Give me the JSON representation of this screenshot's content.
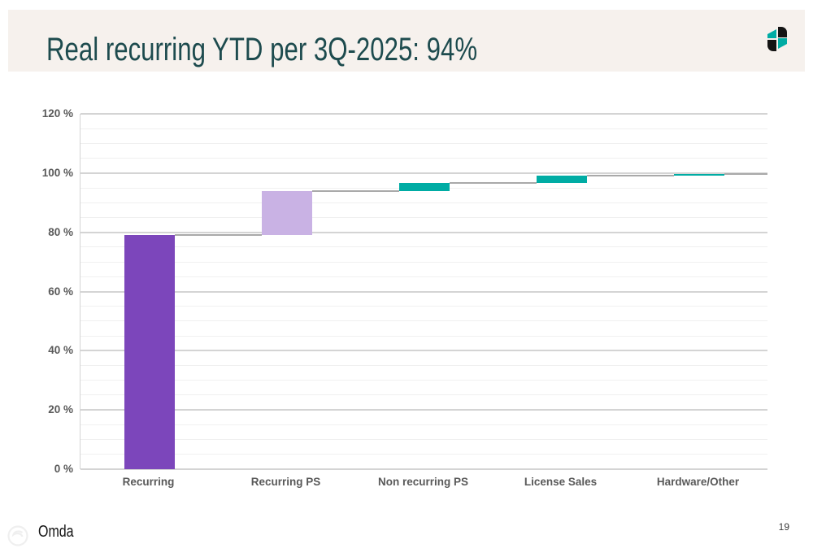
{
  "page": {
    "title": "Real recurring YTD per 3Q-2025: 94%",
    "footer_brand": "Omda",
    "page_number": "19"
  },
  "icons": {
    "header_logo": "omda-logo",
    "footer_logo": "omda-seal"
  },
  "colors": {
    "title": "#1d4b4e",
    "header_bg": "#f6f1ed",
    "bar_dark_purple": "#7c46bb",
    "bar_light_purple": "#c9b2e4",
    "bar_teal": "#00aca4",
    "axis_label": "#595959",
    "gridline_minor": "#f0f0f0",
    "gridline_major": "#d4d4d4",
    "connector": "#a9a9a9",
    "logo_teal": "#00aca4",
    "logo_black": "#141414"
  },
  "chart_data": {
    "type": "waterfall",
    "title": "Real recurring YTD per 3Q-2025: 94%",
    "categories": [
      "Recurring",
      "Recurring PS",
      "Non recurring PS",
      "License Sales",
      "Hardware/Other"
    ],
    "segments": [
      {
        "label": "Recurring",
        "start": 0,
        "end": 79,
        "color_key": "bar_dark_purple"
      },
      {
        "label": "Recurring PS",
        "start": 79,
        "end": 94,
        "color_key": "bar_light_purple"
      },
      {
        "label": "Non recurring PS",
        "start": 94,
        "end": 96.7,
        "color_key": "bar_teal"
      },
      {
        "label": "License Sales",
        "start": 96.7,
        "end": 99,
        "color_key": "bar_teal"
      },
      {
        "label": "Hardware/Other",
        "start": 99,
        "end": 99.8,
        "color_key": "bar_teal"
      }
    ],
    "y_axis": {
      "min": 0,
      "max": 120,
      "major_step": 20,
      "minor_step": 5,
      "tick_format": "{v} %"
    },
    "tick_labels": [
      "0 %",
      "20 %",
      "40 %",
      "60 %",
      "80 %",
      "100 %",
      "120 %"
    ],
    "xlabel": "",
    "ylabel": "",
    "grid": "on",
    "legend": "none"
  }
}
